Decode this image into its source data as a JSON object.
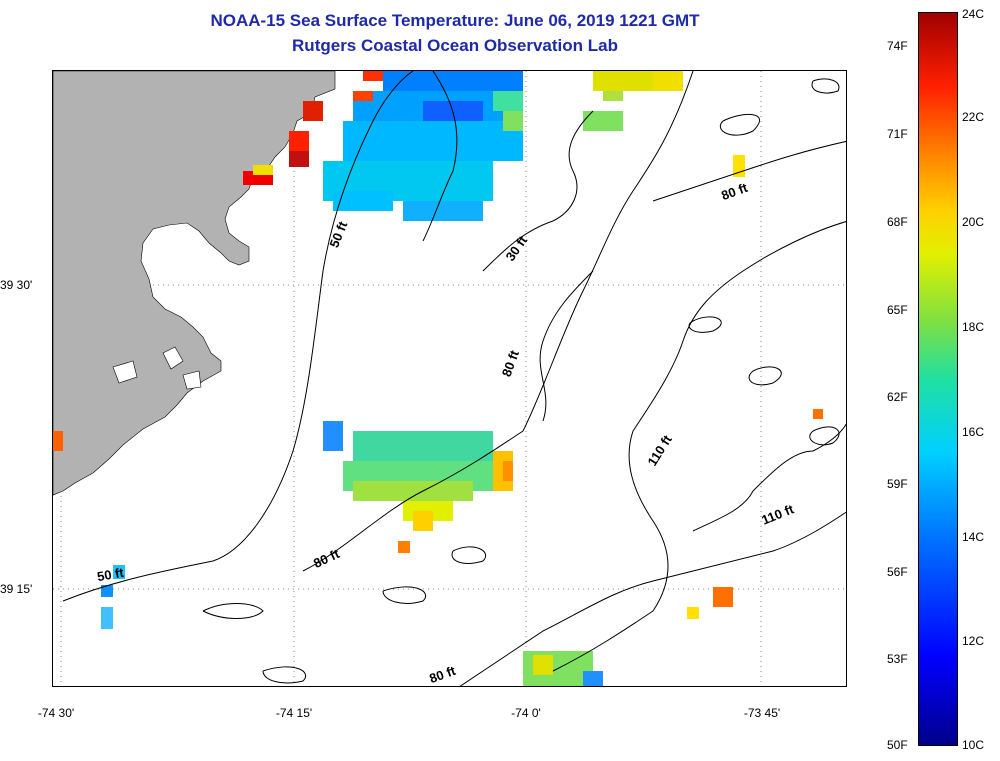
{
  "title": {
    "line1": "NOAA-15 Sea Surface Temperature:  June 06, 2019 1221 GMT",
    "line2": "Rutgers Coastal Ocean Observation Lab"
  },
  "axes": {
    "longitude_labels": [
      "-74 30'",
      "-74 15'",
      "-74 0'",
      "-73 45'"
    ],
    "latitude_labels": [
      "39 30'",
      "39 15'"
    ]
  },
  "colorbar": {
    "fahrenheit_labels": [
      "74F",
      "71F",
      "68F",
      "65F",
      "62F",
      "59F",
      "56F",
      "53F",
      "50F"
    ],
    "celsius_labels": [
      "24C",
      "22C",
      "20C",
      "18C",
      "16C",
      "14C",
      "12C",
      "10C"
    ],
    "range_celsius": [
      10,
      24
    ],
    "colors": [
      "#00008b",
      "#0000ff",
      "#0080ff",
      "#00d0ff",
      "#20e0a0",
      "#80e040",
      "#e0f000",
      "#ffd000",
      "#ff8000",
      "#ff2000",
      "#a00000"
    ]
  },
  "contour_labels": [
    "50 ft",
    "30 ft",
    "80 ft",
    "80 ft",
    "110 ft",
    "110 ft",
    "80 ft",
    "50 ft",
    "80 ft"
  ],
  "colors": {
    "land": "#b2b2b2",
    "title": "#1e2aa8"
  }
}
